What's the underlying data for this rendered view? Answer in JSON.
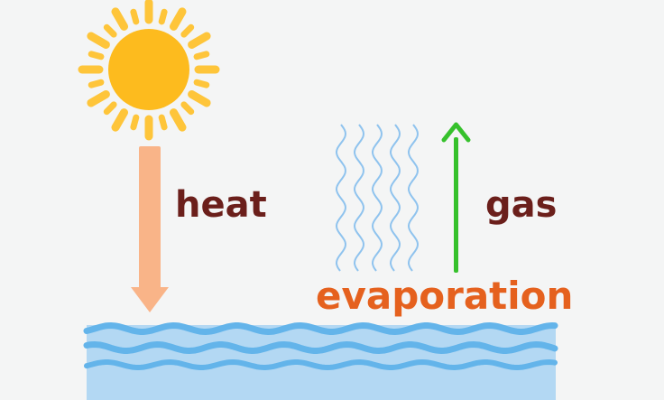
{
  "labels": {
    "heat": "heat",
    "gas": "gas",
    "evaporation": "evaporation"
  },
  "colors": {
    "background": "#f4f5f5",
    "sun_core": "#fdbb1e",
    "sun_rays": "#fec53a",
    "heat_arrow": "#f9b488",
    "gas_arrow": "#36c12c",
    "heat_text": "#6b1f1b",
    "gas_text": "#6b1f1b",
    "evaporation_text": "#e5611e",
    "vapor_lines": "#8fc3ee",
    "water_light": "#b3d8f3",
    "water_wave": "#63b4ea"
  },
  "icons": {
    "sun": "sun-icon",
    "vapor": "vapor-waves-icon",
    "water": "water-icon"
  }
}
